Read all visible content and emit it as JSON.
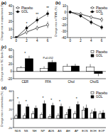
{
  "chart_data": [
    {
      "type": "line",
      "title": "(a)",
      "y_label": "Change rate in capacitance (%)",
      "x": [
        0,
        2,
        4,
        6
      ],
      "xlim": [
        -0.5,
        6.8
      ],
      "xticks": [
        0,
        2,
        4,
        6
      ],
      "ylim": [
        0,
        40
      ],
      "yticks": [
        0,
        10,
        20,
        30,
        40
      ],
      "legend": "upper left",
      "series": [
        {
          "name": "Placebo",
          "color": "#ffffff",
          "marker": "circle",
          "values": [
            0,
            7,
            12,
            16
          ],
          "errors": [
            0,
            3,
            3,
            4
          ]
        },
        {
          "name": "GOL",
          "color": "#000000",
          "marker": "circle",
          "values": [
            0,
            12,
            22,
            30
          ],
          "errors": [
            0,
            3,
            4,
            4
          ]
        }
      ],
      "annotations": [
        {
          "text": "*",
          "x": 2
        },
        {
          "text": "**",
          "x": 4
        },
        {
          "text": "**",
          "x": 6
        }
      ]
    },
    {
      "type": "line",
      "title": "(b)",
      "y_label": "Change rate in TEWL (%)",
      "x": [
        0,
        2,
        4,
        6
      ],
      "xlim": [
        -0.5,
        6.8
      ],
      "xticks": [
        0,
        2,
        4,
        6
      ],
      "ylim": [
        -40,
        10
      ],
      "yticks": [
        -40,
        -30,
        -20,
        -10,
        0,
        10
      ],
      "legend": "upper right",
      "series": [
        {
          "name": "Placebo",
          "color": "#ffffff",
          "marker": "circle",
          "values": [
            0,
            -3,
            -8,
            -12
          ],
          "errors": [
            0,
            3,
            3,
            4
          ]
        },
        {
          "name": "GOL",
          "color": "#000000",
          "marker": "circle",
          "values": [
            0,
            -6,
            -16,
            -24
          ],
          "errors": [
            0,
            3,
            4,
            4
          ]
        }
      ],
      "annotations": [
        {
          "text": "*",
          "x": 4
        },
        {
          "text": "**",
          "x": 6
        }
      ]
    },
    {
      "type": "bar",
      "title": "(c)",
      "y_label": "Change rate in SC lipids (%)",
      "categories": [
        "CER",
        "FFA",
        "Chol",
        "CholS"
      ],
      "ylim": [
        -20,
        60
      ],
      "yticks": [
        -20,
        0,
        20,
        40,
        60
      ],
      "legend": "upper right",
      "series": [
        {
          "name": "Placebo",
          "color": "#ffffff",
          "values": [
            10,
            8,
            14,
            12
          ],
          "errors": [
            5,
            6,
            7,
            8
          ]
        },
        {
          "name": "GOL",
          "color": "#000000",
          "values": [
            35,
            25,
            15,
            -6
          ],
          "errors": [
            8,
            7,
            6,
            7
          ]
        }
      ],
      "annotations": [
        {
          "text": "*",
          "x": "CER"
        },
        {
          "text": "P=0.052",
          "x": "FFA"
        }
      ]
    },
    {
      "type": "bar",
      "title": "(d)",
      "y_label": "Change rate in ceramides (%)",
      "categories": [
        "NDS",
        "NS",
        "NH",
        "NP",
        "ADS",
        "AS",
        "AH",
        "AP",
        "EOS",
        "EOH",
        "EOP"
      ],
      "ylim": [
        -20,
        60
      ],
      "yticks": [
        -20,
        0,
        20,
        40,
        60
      ],
      "legend": "upper right",
      "series": [
        {
          "name": "Placebo",
          "color": "#ffffff",
          "values": [
            5,
            6,
            10,
            8,
            4,
            6,
            8,
            10,
            18,
            12,
            10
          ],
          "errors": [
            5,
            5,
            6,
            5,
            5,
            5,
            6,
            6,
            8,
            7,
            6
          ]
        },
        {
          "name": "GOL",
          "color": "#000000",
          "values": [
            30,
            25,
            22,
            32,
            28,
            26,
            20,
            30,
            22,
            15,
            12
          ],
          "errors": [
            7,
            6,
            6,
            7,
            6,
            6,
            6,
            7,
            8,
            7,
            6
          ]
        }
      ],
      "annotations": [
        {
          "text": "*",
          "x": "NDS"
        },
        {
          "text": "*",
          "x": "NS"
        },
        {
          "text": "*",
          "x": "NP"
        },
        {
          "text": "*",
          "x": "ADS"
        },
        {
          "text": "*",
          "x": "AS"
        },
        {
          "text": "*",
          "x": "AP"
        }
      ]
    }
  ]
}
